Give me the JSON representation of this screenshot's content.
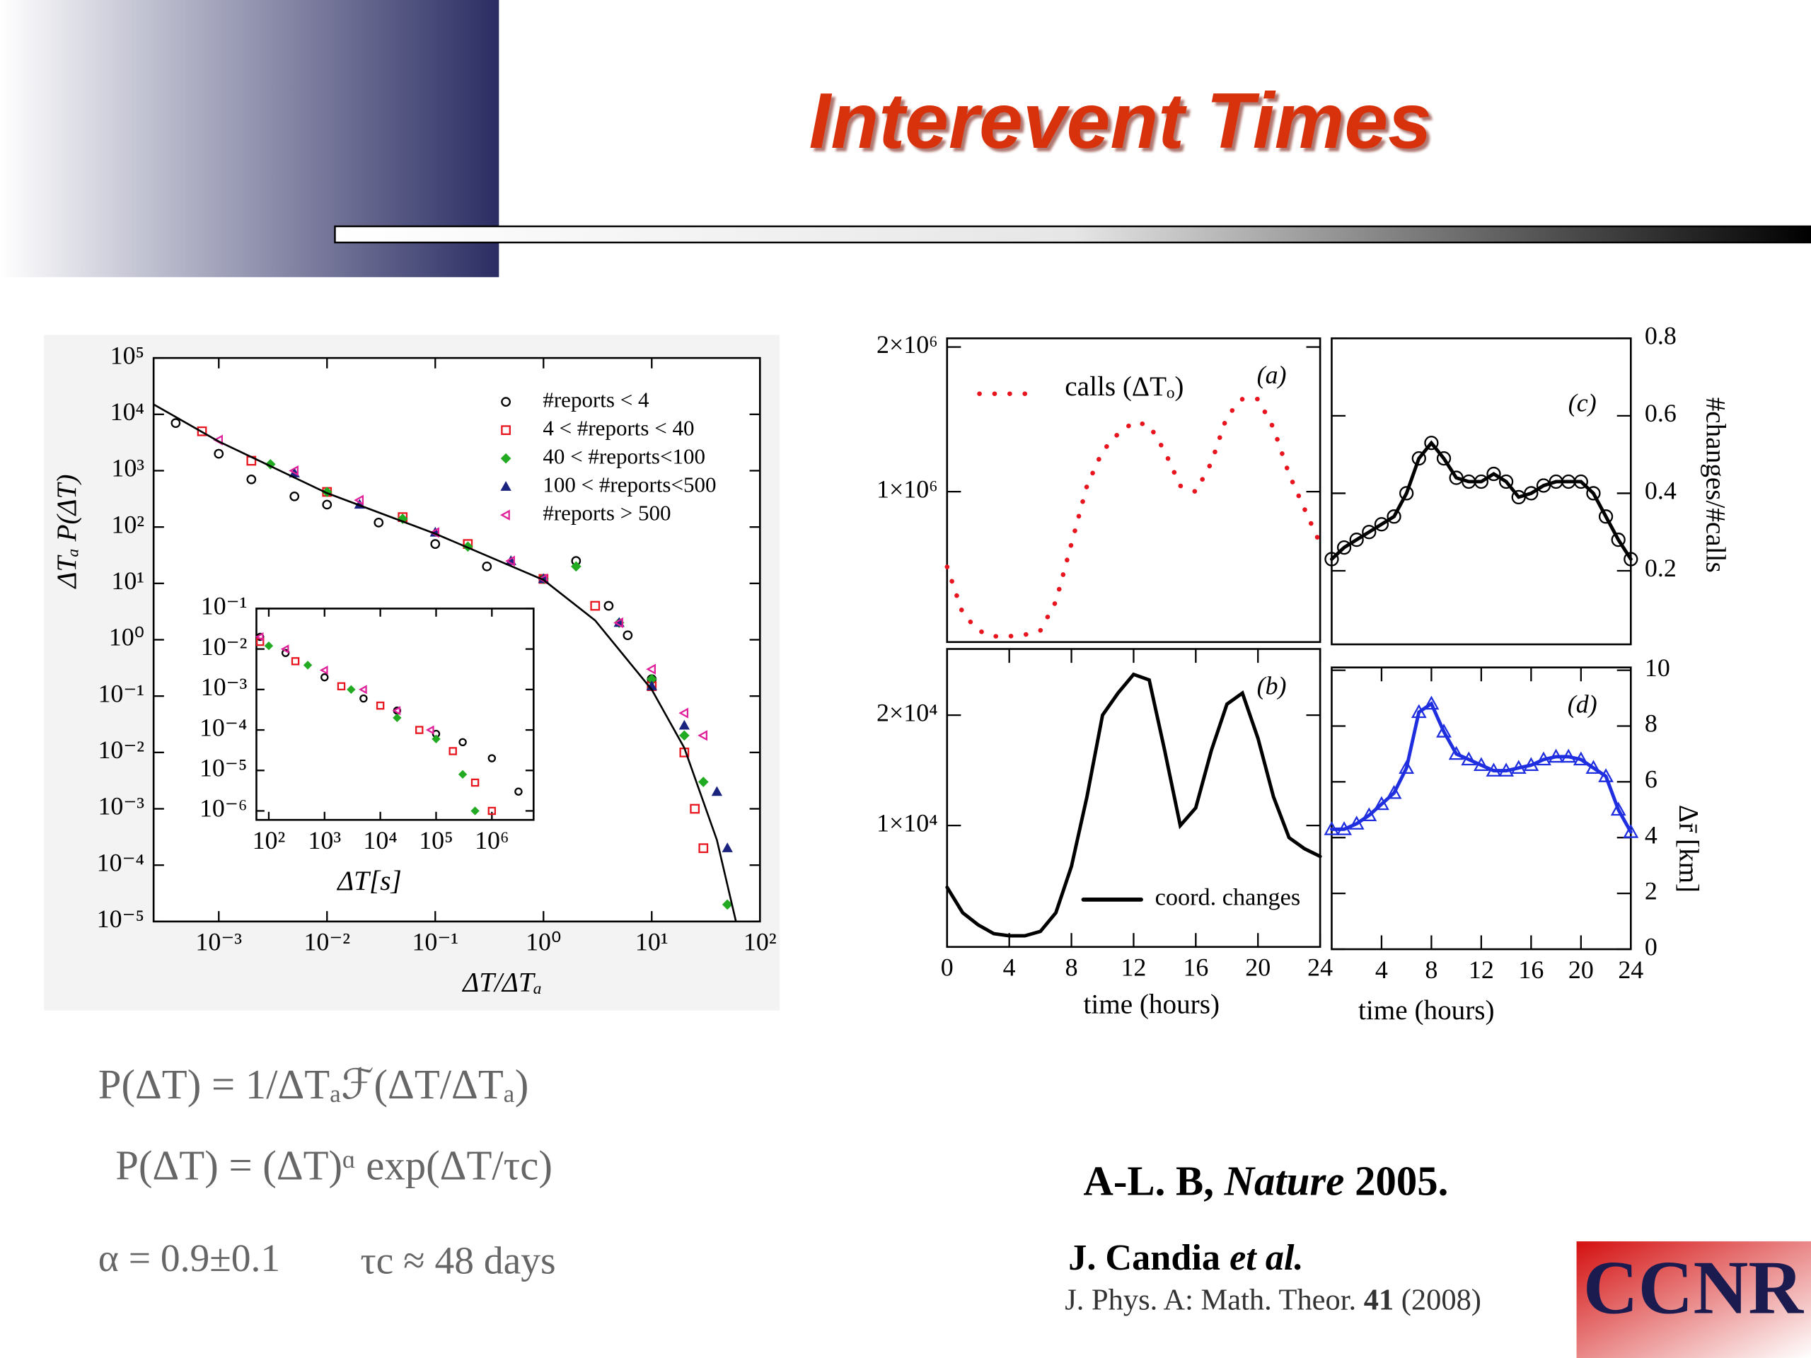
{
  "title": "Interevent Times",
  "chart_data": [
    {
      "type": "scatter",
      "x_label": "ΔT/ΔTₐ",
      "y_label": "ΔTₐ P(ΔT)",
      "log_x": true,
      "log_y": true,
      "xlim": [
        0.00025,
        100
      ],
      "ylim": [
        1e-05,
        100000
      ],
      "xticks": [
        {
          "value": 0.001,
          "label": "10⁻³"
        },
        {
          "value": 0.01,
          "label": "10⁻²"
        },
        {
          "value": 0.1,
          "label": "10⁻¹"
        },
        {
          "value": 1,
          "label": "10⁰"
        },
        {
          "value": 10,
          "label": "10¹"
        },
        {
          "value": 100,
          "label": "10²"
        }
      ],
      "yticks": [
        {
          "value": 1e-05,
          "label": "10⁻⁵"
        },
        {
          "value": 0.0001,
          "label": "10⁻⁴"
        },
        {
          "value": 0.001,
          "label": "10⁻³"
        },
        {
          "value": 0.01,
          "label": "10⁻²"
        },
        {
          "value": 0.1,
          "label": "10⁻¹"
        },
        {
          "value": 1,
          "label": "10⁰"
        },
        {
          "value": 10,
          "label": "10¹"
        },
        {
          "value": 100,
          "label": "10²"
        },
        {
          "value": 1000,
          "label": "10³"
        },
        {
          "value": 10000,
          "label": "10⁴"
        },
        {
          "value": 100000,
          "label": "10⁵"
        }
      ],
      "legend": "upper right",
      "series": [
        {
          "name": "#reports < 4",
          "color": "#000000",
          "marker": "circle",
          "filled": false,
          "x": [
            0.0004,
            0.001,
            0.002,
            0.005,
            0.01,
            0.03,
            0.1,
            0.3,
            1,
            2,
            4,
            6,
            10
          ],
          "values": [
            7000,
            2000,
            700,
            350,
            250,
            120,
            50,
            20,
            12,
            25,
            4,
            1.2,
            0.2
          ]
        },
        {
          "name": "4 < #reports < 40",
          "color": "#e8141e",
          "marker": "square",
          "filled": false,
          "x": [
            0.0007,
            0.002,
            0.01,
            0.05,
            0.2,
            1,
            3,
            10,
            20,
            25,
            30
          ],
          "values": [
            5000,
            1500,
            420,
            150,
            50,
            12,
            4,
            0.15,
            0.01,
            0.001,
            0.0002
          ]
        },
        {
          "name": "40 < #reports<100",
          "color": "#22aa22",
          "marker": "diamond",
          "filled": true,
          "x": [
            0.003,
            0.01,
            0.05,
            0.2,
            1,
            2,
            5,
            10,
            20,
            30,
            50
          ],
          "values": [
            1300,
            420,
            140,
            45,
            12,
            20,
            2,
            0.2,
            0.02,
            0.003,
            2e-05
          ]
        },
        {
          "name": "100 < #reports<500",
          "color": "#1a237e",
          "marker": "triangle",
          "filled": true,
          "x": [
            0.005,
            0.02,
            0.1,
            0.5,
            1,
            5,
            10,
            20,
            40,
            50
          ],
          "values": [
            900,
            250,
            80,
            25,
            12,
            2,
            0.15,
            0.03,
            0.002,
            0.0002
          ]
        },
        {
          "name": "#reports > 500",
          "color": "#e0209a",
          "marker": "triangle-left",
          "filled": false,
          "x": [
            0.001,
            0.005,
            0.02,
            0.1,
            0.5,
            1,
            5,
            10,
            20,
            30
          ],
          "values": [
            3500,
            1000,
            300,
            80,
            25,
            12,
            2,
            0.3,
            0.05,
            0.02
          ]
        }
      ],
      "fit": {
        "color": "#000000",
        "x": [
          0.00025,
          0.001,
          0.01,
          0.1,
          1,
          3,
          10,
          20,
          40,
          60
        ],
        "values": [
          15000,
          3300,
          400,
          76,
          11.5,
          2.2,
          0.13,
          0.012,
          0.00028,
          1e-05
        ]
      }
    },
    {
      "type": "scatter",
      "x_label": "ΔT[s]",
      "log_x": true,
      "log_y": true,
      "xlim": [
        60,
        5600000
      ],
      "ylim": [
        6e-07,
        0.1
      ],
      "xticks": [
        {
          "value": 100,
          "label": "10²"
        },
        {
          "value": 1000,
          "label": "10³"
        },
        {
          "value": 10000,
          "label": "10⁴"
        },
        {
          "value": 100000,
          "label": "10⁵"
        },
        {
          "value": 1000000,
          "label": "10⁶"
        }
      ],
      "yticks": [
        {
          "value": 0.1,
          "label": "10⁻¹"
        },
        {
          "value": 0.01,
          "label": "10⁻²"
        },
        {
          "value": 0.001,
          "label": "10⁻³"
        },
        {
          "value": 0.0001,
          "label": "10⁻⁴"
        },
        {
          "value": 1e-05,
          "label": "10⁻⁵"
        },
        {
          "value": 1e-06,
          "label": "10⁻⁶"
        }
      ],
      "series": [
        {
          "color": "#000000",
          "marker": "circle",
          "filled": false,
          "x": [
            70,
            200,
            1000,
            5000,
            20000,
            100000,
            300000,
            1000000,
            3000000
          ],
          "values": [
            0.02,
            0.008,
            0.002,
            0.0006,
            0.0003,
            8e-05,
            5e-05,
            2e-05,
            3e-06
          ]
        },
        {
          "color": "#e8141e",
          "marker": "square",
          "filled": false,
          "x": [
            70,
            300,
            2000,
            10000,
            50000,
            200000,
            500000,
            1000000
          ],
          "values": [
            0.015,
            0.005,
            0.0012,
            0.0004,
            0.0001,
            3e-05,
            5e-06,
            1e-06
          ]
        },
        {
          "color": "#22aa22",
          "marker": "diamond",
          "filled": true,
          "x": [
            100,
            500,
            3000,
            20000,
            100000,
            300000,
            500000
          ],
          "values": [
            0.012,
            0.004,
            0.001,
            0.0002,
            6e-05,
            8e-06,
            1e-06
          ]
        },
        {
          "color": "#e0209a",
          "marker": "triangle-left",
          "filled": false,
          "x": [
            70,
            200,
            1000,
            5000,
            20000,
            80000
          ],
          "values": [
            0.02,
            0.01,
            0.003,
            0.001,
            0.0003,
            0.0001
          ]
        }
      ]
    },
    {
      "type": "line",
      "line_style": "dotted",
      "annotation": "(a)",
      "legend": "upper left",
      "x": [
        0,
        1,
        2,
        3,
        4,
        5,
        6,
        7,
        8,
        9,
        10,
        11,
        12,
        13,
        14,
        15,
        16,
        17,
        18,
        19,
        20,
        21,
        22,
        23,
        24
      ],
      "xlim": [
        0,
        24
      ],
      "ylim": [
        -40000,
        2060000
      ],
      "yticks": [
        {
          "value": 1000000,
          "label": "1×10⁶"
        },
        {
          "value": 2000000,
          "label": "2×10⁶"
        }
      ],
      "series": [
        {
          "name": "calls (ΔTₒ)",
          "color": "#e8141e",
          "values": [
            480000,
            160000,
            40000,
            0,
            0,
            10000,
            40000,
            240000,
            640000,
            1040000,
            1280000,
            1400000,
            1480000,
            1460000,
            1280000,
            1040000,
            1000000,
            1200000,
            1520000,
            1640000,
            1640000,
            1440000,
            1120000,
            880000,
            640000
          ]
        }
      ]
    },
    {
      "type": "line",
      "annotation": "(b)",
      "legend": "lower right",
      "x_label": "time (hours)",
      "x": [
        0,
        1,
        2,
        3,
        4,
        5,
        6,
        7,
        8,
        9,
        10,
        11,
        12,
        13,
        14,
        15,
        16,
        17,
        18,
        19,
        20,
        21,
        22,
        23,
        24
      ],
      "xlim": [
        0,
        24
      ],
      "ylim": [
        -1000,
        26000
      ],
      "xticks": [
        0,
        4,
        8,
        12,
        16,
        20,
        24
      ],
      "yticks": [
        {
          "value": 10000,
          "label": "1×10⁴"
        },
        {
          "value": 20000,
          "label": "2×10⁴"
        }
      ],
      "series": [
        {
          "name": "coord. changes",
          "color": "#000000",
          "values": [
            4400,
            2100,
            1000,
            200,
            0,
            0,
            400,
            2100,
            6300,
            12600,
            20000,
            22000,
            23700,
            23200,
            16800,
            10000,
            11600,
            16800,
            21000,
            22000,
            17900,
            12600,
            8900,
            7900,
            7200
          ]
        }
      ]
    },
    {
      "type": "line",
      "annotation": "(c)",
      "y_axis": "right",
      "y_label": "#changes/#calls",
      "x": [
        0,
        1,
        2,
        3,
        4,
        5,
        6,
        7,
        8,
        9,
        10,
        11,
        12,
        13,
        14,
        15,
        16,
        17,
        18,
        19,
        20,
        21,
        22,
        23,
        24
      ],
      "xlim": [
        0,
        24
      ],
      "ylim": [
        0.01,
        0.8
      ],
      "yticks": [
        0.2,
        0.4,
        0.6,
        0.8
      ],
      "series": [
        {
          "color": "#000000",
          "marker": "circle",
          "filled": false,
          "values": [
            0.23,
            0.26,
            0.28,
            0.3,
            0.32,
            0.34,
            0.4,
            0.49,
            0.53,
            0.49,
            0.44,
            0.43,
            0.43,
            0.45,
            0.43,
            0.39,
            0.4,
            0.42,
            0.43,
            0.43,
            0.43,
            0.4,
            0.34,
            0.28,
            0.23
          ]
        }
      ]
    },
    {
      "type": "line",
      "annotation": "(d)",
      "y_axis": "right",
      "y_label": "Δr̄ [km]",
      "x_label": "time (hours)",
      "x": [
        0,
        1,
        2,
        3,
        4,
        5,
        6,
        7,
        8,
        9,
        10,
        11,
        12,
        13,
        14,
        15,
        16,
        17,
        18,
        19,
        20,
        21,
        22,
        23,
        24
      ],
      "xlim": [
        0,
        24
      ],
      "ylim": [
        0,
        10.1
      ],
      "xticks": [
        4,
        8,
        12,
        16,
        20,
        24
      ],
      "yticks": [
        0,
        2,
        4,
        6,
        8,
        10
      ],
      "series": [
        {
          "color": "#1f2fe0",
          "marker": "triangle",
          "filled": false,
          "values": [
            4.3,
            4.3,
            4.5,
            4.8,
            5.2,
            5.6,
            6.5,
            8.5,
            8.8,
            7.8,
            7.0,
            6.8,
            6.6,
            6.4,
            6.4,
            6.5,
            6.6,
            6.8,
            6.9,
            6.9,
            6.8,
            6.5,
            6.2,
            5.0,
            4.2
          ]
        }
      ]
    }
  ],
  "formulas": [
    "P(ΔT)  = 1/ΔTₐℱ(ΔT/ΔTₐ)",
    "P(ΔT) = (ΔT)ᵅ exp(ΔT/τc)",
    "α = 0.9±0.1",
    "τc ≈ 48 days"
  ],
  "references": [
    {
      "authors": "A-L. B,",
      "journal": "Nature",
      "year": "2005."
    },
    {
      "authors": "J. Candia",
      "etal": "et al."
    },
    {
      "journal": "J. Phys. A: Math. Theor.",
      "volume": "41",
      "year": "(2008)"
    }
  ],
  "logo": "CCNR"
}
